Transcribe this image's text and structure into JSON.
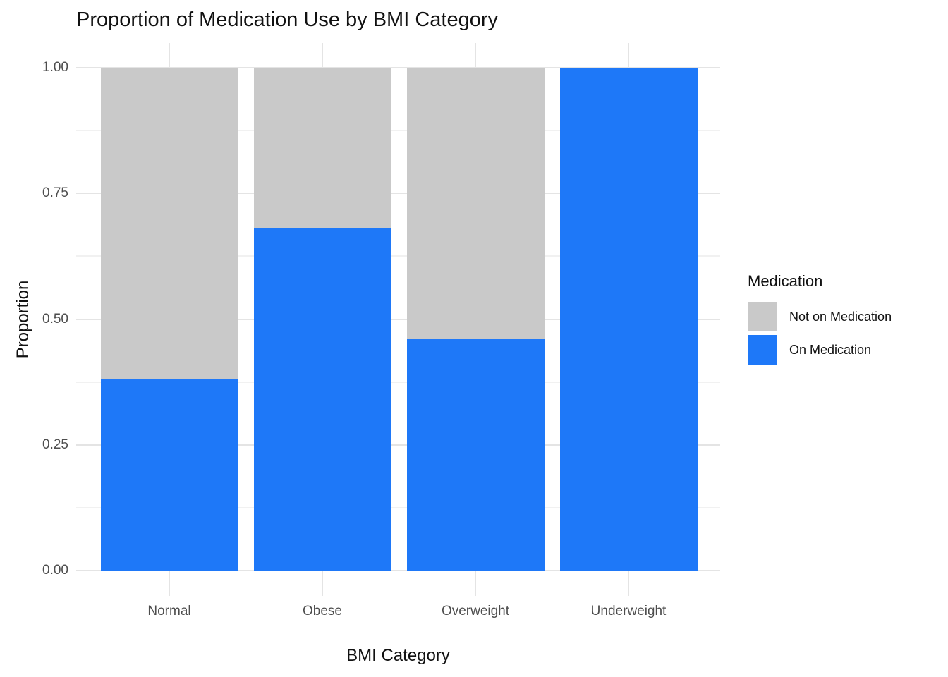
{
  "title": "Proportion of Medication Use by BMI Category",
  "chart_data": {
    "type": "bar",
    "stacked": true,
    "orientation": "vertical",
    "title": "Proportion of Medication Use by BMI Category",
    "xlabel": "BMI Category",
    "ylabel": "Proportion",
    "categories": [
      "Normal",
      "Obese",
      "Overweight",
      "Underweight"
    ],
    "series": [
      {
        "name": "On Medication",
        "color": "#1E78F8",
        "values": [
          0.38,
          0.68,
          0.46,
          1.0
        ]
      },
      {
        "name": "Not on Medication",
        "color": "#C9C9C9",
        "values": [
          0.62,
          0.32,
          0.54,
          0.0
        ]
      }
    ],
    "ylim": [
      0,
      1
    ],
    "ytick_labels": [
      "0.00",
      "0.25",
      "0.50",
      "0.75",
      "1.00"
    ],
    "ytick_values": [
      0,
      0.25,
      0.5,
      0.75,
      1
    ],
    "yminor_values": [
      0.125,
      0.375,
      0.625,
      0.875
    ],
    "grid": "on",
    "legend_position": "right",
    "legend_title": "Medication"
  },
  "legend": {
    "title": "Medication",
    "items": [
      {
        "label": "Not on Medication",
        "color": "#C9C9C9"
      },
      {
        "label": "On Medication",
        "color": "#1E78F8"
      }
    ]
  },
  "colors": {
    "on_medication": "#1E78F8",
    "not_on_medication": "#C9C9C9",
    "grid_major": "#E4E4E4",
    "grid_minor": "#F1F1F1",
    "tick_label": "#4d4d4d",
    "text": "#111111",
    "background": "#FFFFFF"
  }
}
